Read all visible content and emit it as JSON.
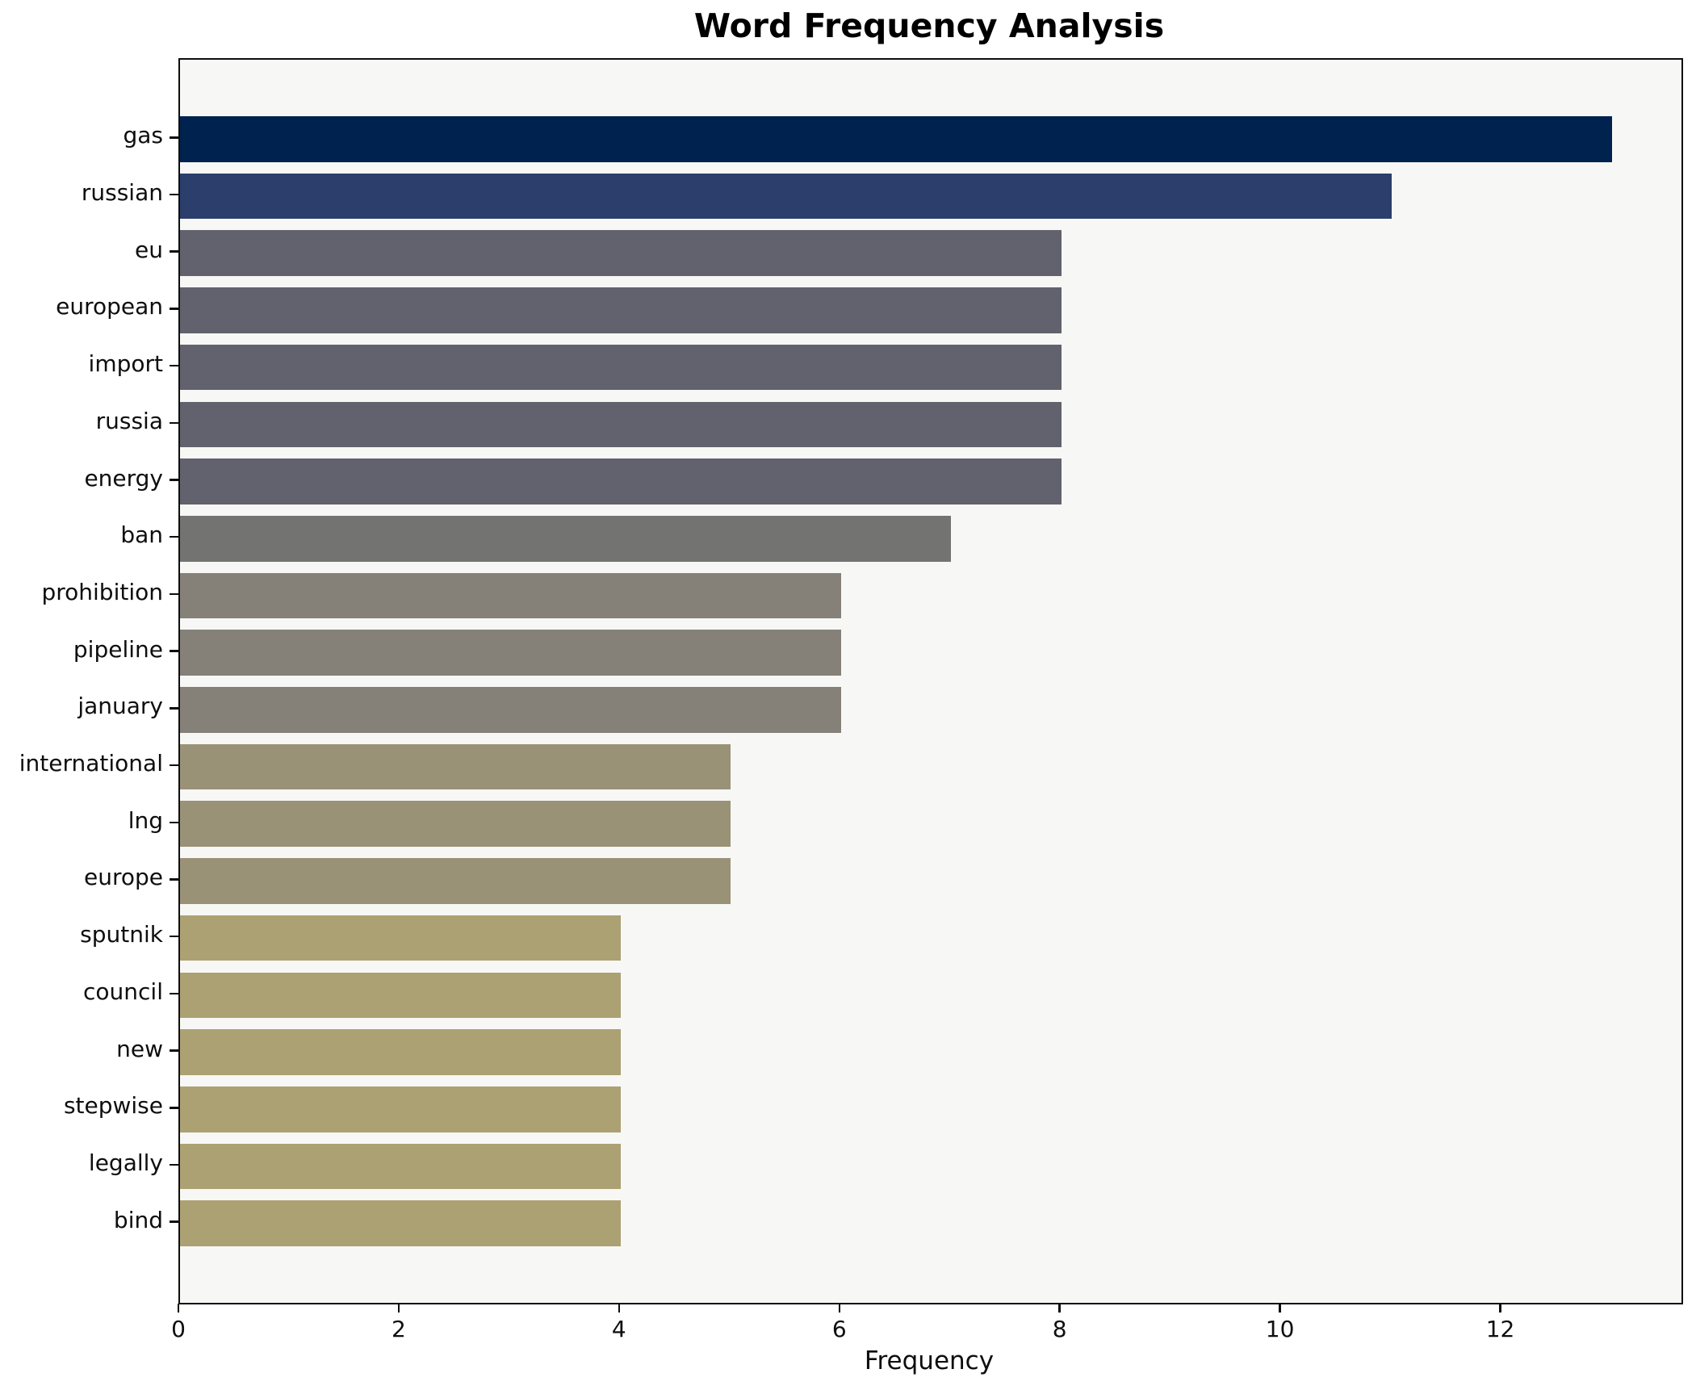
{
  "title": "Word Frequency Analysis",
  "xlabel": "Frequency",
  "chart_data": {
    "type": "bar",
    "orientation": "horizontal",
    "title": "Word Frequency Analysis",
    "xlabel": "Frequency",
    "ylabel": "",
    "categories": [
      "gas",
      "russian",
      "eu",
      "european",
      "import",
      "russia",
      "energy",
      "ban",
      "prohibition",
      "pipeline",
      "january",
      "international",
      "lng",
      "europe",
      "sputnik",
      "council",
      "new",
      "stepwise",
      "legally",
      "bind"
    ],
    "values": [
      13,
      11,
      8,
      8,
      8,
      8,
      8,
      7,
      6,
      6,
      6,
      5,
      5,
      5,
      4,
      4,
      4,
      4,
      4,
      4
    ],
    "xlim": [
      0,
      13.63
    ],
    "xticks": [
      0,
      2,
      4,
      6,
      8,
      10,
      12
    ],
    "grid": false,
    "legend_position": "none",
    "bar_colors_by_value": {
      "13": "#00224e",
      "11": "#2b3e6c",
      "8": "#62626e",
      "7": "#737372",
      "6": "#858078",
      "5": "#9a9277",
      "4": "#aca173"
    },
    "colors": {
      "figure_background": "#ffffff",
      "axes_background": "#f7f7f5",
      "spine": "#0e0e0e",
      "text": "#000000"
    }
  }
}
